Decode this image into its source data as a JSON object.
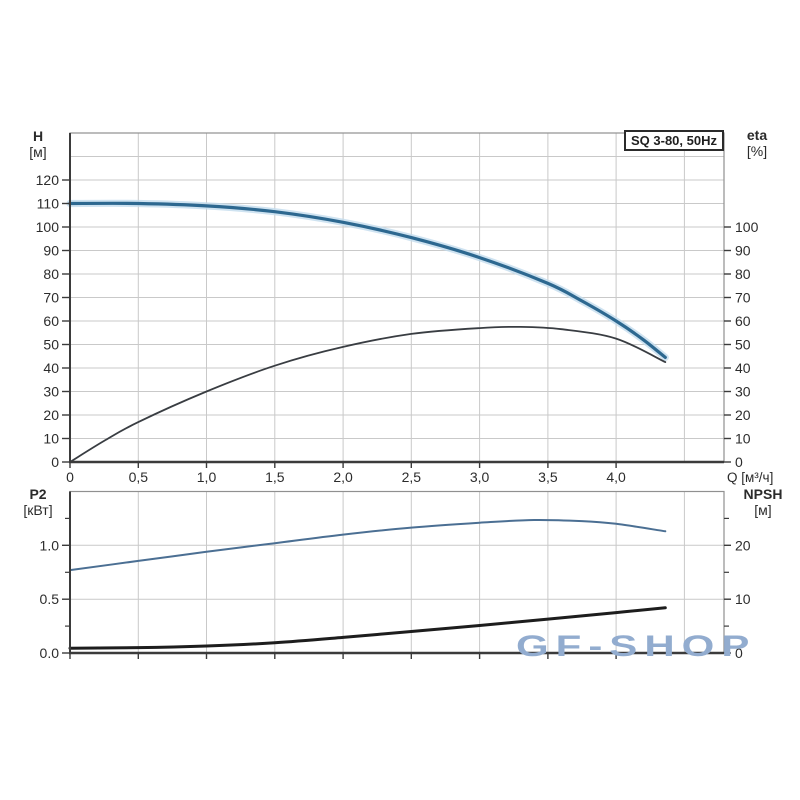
{
  "background": "#ffffff",
  "badge": {
    "label": "SQ 3-80, 50Hz"
  },
  "watermark": {
    "text": "GF-SHOP",
    "color": "#92accf"
  },
  "labels": {
    "h_title": "H",
    "h_unit": "[м]",
    "eta_title": "eta",
    "eta_unit": "[%]",
    "q_label": "Q [м³/ч]",
    "p2_title": "P2",
    "p2_unit": "[кВт]",
    "npsh_title": "NPSH",
    "npsh_unit": "[м]"
  },
  "style": {
    "grid_color": "#c9c9c9",
    "border_color": "#909090",
    "axis_color": "#3b3b3b",
    "tick_label_color": "#2c2c2c"
  },
  "chart_data": [
    {
      "type": "line",
      "title": "SQ 3-80, 50Hz",
      "xlabel": "Q [м³/ч]",
      "ylabel_left": "H [м]",
      "ylabel_right": "eta [%]",
      "xlim": [
        0,
        4.79
      ],
      "ylim_left": [
        0,
        140
      ],
      "ylim_right": [
        0,
        140
      ],
      "grid_x": [
        0.5,
        1,
        1.5,
        2,
        2.5,
        3,
        3.5,
        4,
        4.5
      ],
      "grid_y_left": [
        10,
        20,
        30,
        40,
        50,
        60,
        70,
        80,
        90,
        100,
        110,
        120,
        130
      ],
      "x_ticks": [
        {
          "v": 0,
          "label": "0"
        },
        {
          "v": 0.5,
          "label": "0,5"
        },
        {
          "v": 1,
          "label": "1,0"
        },
        {
          "v": 1.5,
          "label": "1,5"
        },
        {
          "v": 2,
          "label": "2,0"
        },
        {
          "v": 2.5,
          "label": "2,5"
        },
        {
          "v": 3,
          "label": "3,0"
        },
        {
          "v": 3.5,
          "label": "3,5"
        },
        {
          "v": 4,
          "label": "4,0"
        }
      ],
      "left_ticks": [
        {
          "v": 0,
          "label": "0"
        },
        {
          "v": 10,
          "label": "10"
        },
        {
          "v": 20,
          "label": "20"
        },
        {
          "v": 30,
          "label": "30"
        },
        {
          "v": 40,
          "label": "40"
        },
        {
          "v": 50,
          "label": "50"
        },
        {
          "v": 60,
          "label": "60"
        },
        {
          "v": 70,
          "label": "70"
        },
        {
          "v": 80,
          "label": "80"
        },
        {
          "v": 90,
          "label": "90"
        },
        {
          "v": 100,
          "label": "100"
        },
        {
          "v": 110,
          "label": "110"
        },
        {
          "v": 120,
          "label": "120"
        }
      ],
      "left_minor": [],
      "right_ticks": [
        {
          "v": 0,
          "label": "0"
        },
        {
          "v": 10,
          "label": "10"
        },
        {
          "v": 20,
          "label": "20"
        },
        {
          "v": 30,
          "label": "30"
        },
        {
          "v": 40,
          "label": "40"
        },
        {
          "v": 50,
          "label": "50"
        },
        {
          "v": 60,
          "label": "60"
        },
        {
          "v": 70,
          "label": "70"
        },
        {
          "v": 80,
          "label": "80"
        },
        {
          "v": 90,
          "label": "90"
        },
        {
          "v": 100,
          "label": "100"
        }
      ],
      "right_minor": [],
      "series": [
        {
          "name": "H",
          "axis": "left",
          "color": "#2d6890",
          "width": 3.2,
          "halo": "#c3dcee",
          "points": [
            [
              0,
              110
            ],
            [
              0.5,
              110
            ],
            [
              1,
              109
            ],
            [
              1.5,
              106.5
            ],
            [
              2,
              102
            ],
            [
              2.5,
              95.5
            ],
            [
              3,
              87
            ],
            [
              3.5,
              76
            ],
            [
              3.75,
              68.5
            ],
            [
              4,
              60
            ],
            [
              4.2,
              52
            ],
            [
              4.36,
              44.5
            ]
          ]
        },
        {
          "name": "eta",
          "axis": "right",
          "color": "#393d42",
          "width": 1.8,
          "points": [
            [
              0,
              0
            ],
            [
              0.25,
              9
            ],
            [
              0.5,
              17
            ],
            [
              1,
              30
            ],
            [
              1.5,
              41
            ],
            [
              2,
              49
            ],
            [
              2.5,
              54.5
            ],
            [
              3,
              57
            ],
            [
              3.3,
              57.5
            ],
            [
              3.6,
              56.5
            ],
            [
              4,
              52.5
            ],
            [
              4.36,
              42.5
            ]
          ]
        }
      ]
    },
    {
      "type": "line",
      "title": "",
      "xlabel": "",
      "ylabel_left": "P2 [кВт]",
      "ylabel_right": "NPSH [м]",
      "xlim": [
        0,
        4.79
      ],
      "ylim_left": [
        0,
        1.5
      ],
      "ylim_right": [
        0,
        30
      ],
      "grid_x": [
        0.5,
        1,
        1.5,
        2,
        2.5,
        3,
        3.5,
        4,
        4.5
      ],
      "grid_y_left": [
        0.5,
        1
      ],
      "x_ticks": [
        {
          "v": 0,
          "label": ""
        },
        {
          "v": 0.5,
          "label": ""
        },
        {
          "v": 1,
          "label": ""
        },
        {
          "v": 1.5,
          "label": ""
        },
        {
          "v": 2,
          "label": ""
        },
        {
          "v": 2.5,
          "label": ""
        },
        {
          "v": 3,
          "label": ""
        },
        {
          "v": 3.5,
          "label": ""
        },
        {
          "v": 4,
          "label": ""
        }
      ],
      "left_ticks": [
        {
          "v": 0,
          "label": "0.0"
        },
        {
          "v": 0.5,
          "label": "0.5"
        },
        {
          "v": 1,
          "label": "1.0"
        }
      ],
      "left_minor": [
        0.25,
        0.75,
        1.25
      ],
      "right_ticks": [
        {
          "v": 0,
          "label": "0"
        },
        {
          "v": 10,
          "label": "10"
        },
        {
          "v": 20,
          "label": "20"
        }
      ],
      "right_minor": [
        5,
        15,
        25
      ],
      "series": [
        {
          "name": "P2",
          "axis": "left",
          "color": "#4b6f93",
          "width": 2,
          "points": [
            [
              0,
              0.77
            ],
            [
              0.5,
              0.855
            ],
            [
              1,
              0.94
            ],
            [
              1.5,
              1.02
            ],
            [
              2,
              1.1
            ],
            [
              2.5,
              1.165
            ],
            [
              3,
              1.21
            ],
            [
              3.4,
              1.235
            ],
            [
              3.75,
              1.225
            ],
            [
              4,
              1.2
            ],
            [
              4.36,
              1.13
            ]
          ]
        },
        {
          "name": "NPSH",
          "axis": "right",
          "color": "#1d1d1d",
          "width": 3,
          "points": [
            [
              0,
              0.9
            ],
            [
              0.5,
              1.0
            ],
            [
              1,
              1.3
            ],
            [
              1.5,
              1.9
            ],
            [
              2,
              2.9
            ],
            [
              2.5,
              4.0
            ],
            [
              3,
              5.1
            ],
            [
              3.5,
              6.3
            ],
            [
              4,
              7.5
            ],
            [
              4.36,
              8.4
            ]
          ]
        }
      ]
    }
  ]
}
